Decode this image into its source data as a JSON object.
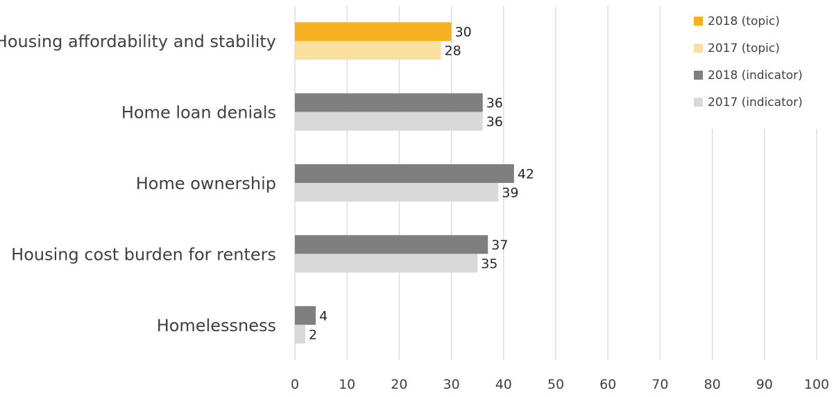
{
  "chart_data": {
    "type": "bar",
    "orientation": "horizontal",
    "title": "",
    "xlabel": "",
    "ylabel": "",
    "xlim": [
      0,
      100
    ],
    "x_ticks": [
      0,
      10,
      20,
      30,
      40,
      50,
      60,
      70,
      80,
      90,
      100
    ],
    "grid": "vertical gridlines",
    "legend_position": "top-right",
    "categories": [
      "Housing affordability and stability",
      "Home loan denials",
      "Home ownership",
      "Housing cost burden for renters",
      "Homelessness"
    ],
    "series": [
      {
        "name": "2018 (topic)",
        "color": "#F5B122",
        "values": [
          30,
          null,
          null,
          null,
          null
        ]
      },
      {
        "name": "2017 (topic)",
        "color": "#FADF9F",
        "values": [
          28,
          null,
          null,
          null,
          null
        ]
      },
      {
        "name": "2018 (indicator)",
        "color": "#7F7F7F",
        "values": [
          null,
          36,
          42,
          37,
          4
        ]
      },
      {
        "name": "2017 (indicator)",
        "color": "#D9D9D9",
        "values": [
          null,
          36,
          39,
          35,
          2
        ]
      }
    ],
    "gridline_color": "#D9D9D9"
  }
}
